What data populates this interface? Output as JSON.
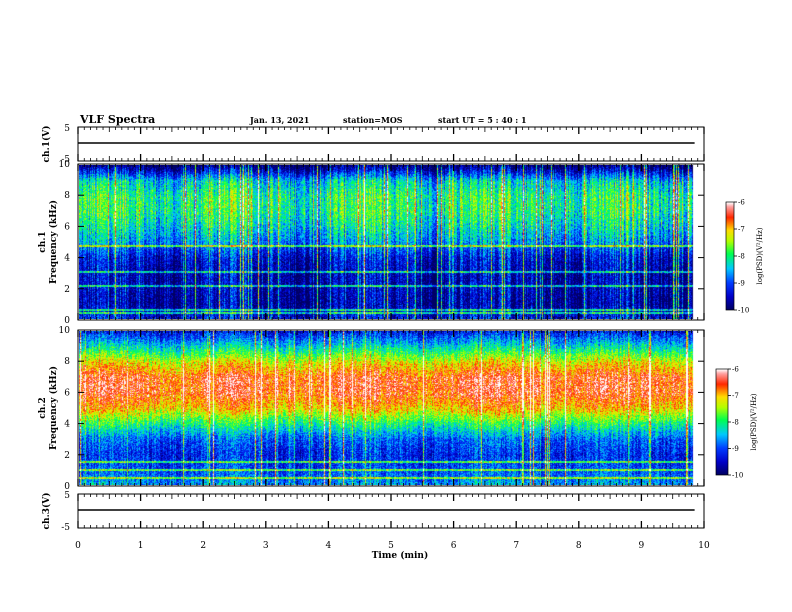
{
  "header": {
    "title": "VLF Spectra",
    "date": "Jan. 13, 2021",
    "station": "station=MOS",
    "start": "start  UT =  5 : 40 : 1"
  },
  "colors": {
    "noise_floor": "#000080",
    "low": "#0000ff",
    "mid_low": "#00c0ff",
    "mid": "#00ff40",
    "mid_high": "#ffff00",
    "high": "#ff0000",
    "max": "#ffffff"
  },
  "chart_data": [
    {
      "id": "ch1-voltage",
      "type": "line",
      "ylabel": "ch.1(V)",
      "ylim": [
        -5,
        5
      ],
      "yticks": [
        "5",
        "-5"
      ],
      "x": [
        0,
        9.85
      ],
      "y": [
        0,
        0
      ],
      "xlim": [
        0,
        10
      ]
    },
    {
      "id": "ch1-spectrogram",
      "type": "heatmap",
      "ylabel": "ch.1\nFrequency (kHz)",
      "ylabel_line1": "ch.1",
      "ylabel_line2": "Frequency (kHz)",
      "ylim": [
        0,
        10
      ],
      "xlim": [
        0,
        10
      ],
      "yticks": [
        "0",
        "2",
        "4",
        "6",
        "8",
        "10"
      ],
      "colorbar": {
        "label": "log(PSD)(V²/Hz)",
        "range": [
          -10,
          -6
        ],
        "ticks": [
          "-6",
          "-7",
          "-8",
          "-9",
          "-10"
        ]
      },
      "data_end_min": 9.85,
      "band_profile_khz": [
        0,
        1,
        2,
        3,
        4,
        5,
        6,
        7,
        8,
        9,
        10
      ],
      "band_level_log_psd": [
        -9.3,
        -9.7,
        -9.6,
        -9.6,
        -9.4,
        -8.7,
        -8.3,
        -8.0,
        -8.0,
        -8.4,
        -10.0
      ]
    },
    {
      "id": "ch2-spectrogram",
      "type": "heatmap",
      "ylabel": "ch.2\nFrequency (kHz)",
      "ylabel_line1": "ch.2",
      "ylabel_line2": "Frequency (kHz)",
      "ylim": [
        0,
        10
      ],
      "xlim": [
        0,
        10
      ],
      "yticks": [
        "0",
        "2",
        "4",
        "6",
        "8",
        "10"
      ],
      "colorbar": {
        "label": "log(PSD)(V²/Hz)",
        "range": [
          -10,
          -6
        ],
        "ticks": [
          "-6",
          "-7",
          "-8",
          "-9",
          "-10"
        ]
      },
      "data_end_min": 9.85,
      "band_profile_khz": [
        0,
        1,
        2,
        3,
        4,
        5,
        6,
        7,
        8,
        9,
        10
      ],
      "band_level_log_psd": [
        -8.6,
        -9.0,
        -9.2,
        -8.9,
        -8.0,
        -7.0,
        -6.5,
        -6.5,
        -7.2,
        -8.3,
        -9.3
      ]
    },
    {
      "id": "ch3-voltage",
      "type": "line",
      "ylabel": "ch.3(V)",
      "ylim": [
        -5,
        5
      ],
      "yticks": [
        "5",
        "-5"
      ],
      "x": [
        0,
        9.85
      ],
      "y": [
        0,
        0
      ],
      "xlim": [
        0,
        10
      ]
    }
  ],
  "xaxis": {
    "label": "Time (min)",
    "ticks": [
      "0",
      "1",
      "2",
      "3",
      "4",
      "5",
      "6",
      "7",
      "8",
      "9",
      "10"
    ]
  }
}
